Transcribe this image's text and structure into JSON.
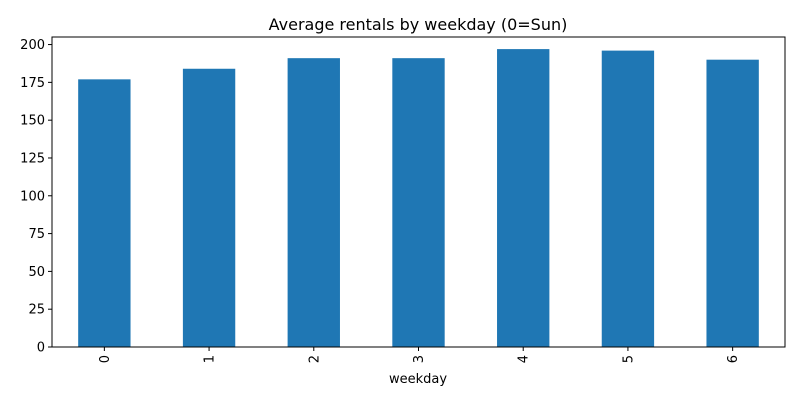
{
  "chart_data": {
    "type": "bar",
    "title": "Average rentals by weekday (0=Sun)",
    "xlabel": "weekday",
    "ylabel": "",
    "categories": [
      "0",
      "1",
      "2",
      "3",
      "4",
      "5",
      "6"
    ],
    "values": [
      177,
      184,
      191,
      191,
      197,
      196,
      190
    ],
    "ylim": [
      0,
      205
    ],
    "yticks": [
      0,
      25,
      50,
      75,
      100,
      125,
      150,
      175,
      200
    ],
    "grid": false,
    "legend": "none",
    "x_tick_rotation": "vertical",
    "bar_color": "#1f77b4"
  }
}
